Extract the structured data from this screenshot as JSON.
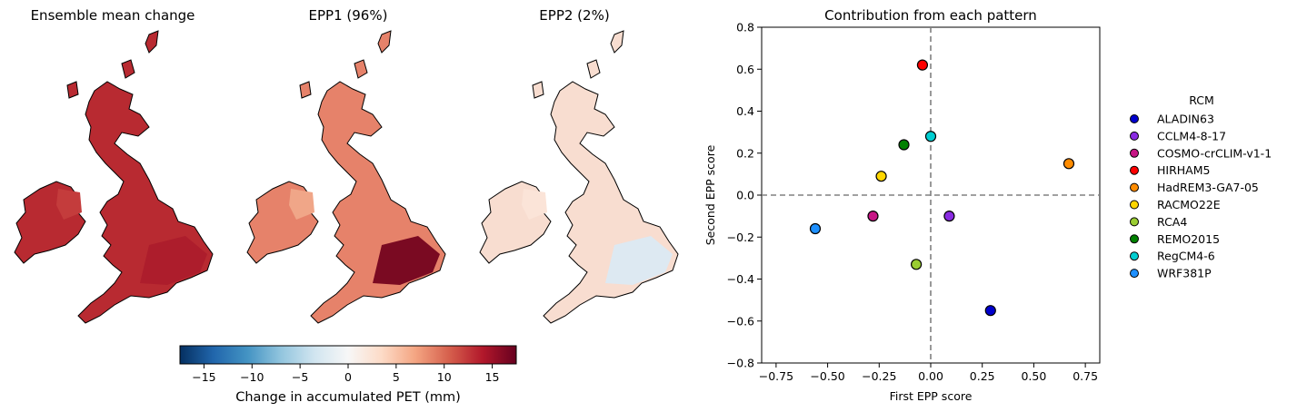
{
  "maps": [
    {
      "title": "Ensemble mean change",
      "fill": "#b82a31",
      "se_fill": "#ad1d2c",
      "ni_fill": "#c43c3c",
      "field": "mean"
    },
    {
      "title": "EPP1 (96%)",
      "fill": "#e6826a",
      "se_fill": "#7a0a22",
      "ni_fill": "#f0a688",
      "field": "epp1"
    },
    {
      "title": "EPP2 (2%)",
      "fill": "#f8ddd0",
      "se_fill": "#dde9f2",
      "ni_fill": "#fbe4d8",
      "field": "epp2"
    }
  ],
  "colorbar": {
    "label": "Change in accumulated PET (mm)",
    "min": -17.5,
    "max": 17.5,
    "ticks": [
      -15,
      -10,
      -5,
      0,
      5,
      10,
      15
    ],
    "tick_labels": [
      "−15",
      "−10",
      "−5",
      "0",
      "5",
      "10",
      "15"
    ],
    "colors": [
      "#053061",
      "#2166ac",
      "#4393c3",
      "#92c5de",
      "#d1e5f0",
      "#f7f7f7",
      "#fddbc7",
      "#f4a582",
      "#d6604d",
      "#b2182b",
      "#67001f"
    ]
  },
  "chart_data": {
    "type": "scatter",
    "title": "Contribution from each pattern",
    "xlabel": "First EPP score",
    "ylabel": "Second EPP score",
    "xlim": [
      -0.82,
      0.82
    ],
    "ylim": [
      -0.8,
      0.8
    ],
    "xticks": [
      -0.75,
      -0.5,
      -0.25,
      0.0,
      0.25,
      0.5,
      0.75
    ],
    "xtick_labels": [
      "−0.75",
      "−0.50",
      "−0.25",
      "0.00",
      "0.25",
      "0.50",
      "0.75"
    ],
    "yticks": [
      -0.8,
      -0.6,
      -0.4,
      -0.2,
      0.0,
      0.2,
      0.4,
      0.6,
      0.8
    ],
    "ytick_labels": [
      "−0.8",
      "−0.6",
      "−0.4",
      "−0.2",
      "0.0",
      "0.2",
      "0.4",
      "0.6",
      "0.8"
    ],
    "reference_lines": {
      "x": 0,
      "y": 0,
      "style": "dashed",
      "color": "#808080"
    },
    "grid": false,
    "legend_title": "RCM",
    "legend_placement": "outside right",
    "points": [
      {
        "name": "ALADIN63",
        "x": 0.29,
        "y": -0.55,
        "color": "#0000cd"
      },
      {
        "name": "CCLM4-8-17",
        "x": 0.09,
        "y": -0.1,
        "color": "#8a2be2"
      },
      {
        "name": "COSMO-crCLIM-v1-1",
        "x": -0.28,
        "y": -0.1,
        "color": "#c71585"
      },
      {
        "name": "HIRHAM5",
        "x": -0.04,
        "y": 0.62,
        "color": "#ff0000"
      },
      {
        "name": "HadREM3-GA7-05",
        "x": 0.67,
        "y": 0.15,
        "color": "#ff8c00"
      },
      {
        "name": "RACMO22E",
        "x": -0.24,
        "y": 0.09,
        "color": "#ffd700"
      },
      {
        "name": "RCA4",
        "x": -0.07,
        "y": -0.33,
        "color": "#9acd32"
      },
      {
        "name": "REMO2015",
        "x": -0.13,
        "y": 0.24,
        "color": "#008000"
      },
      {
        "name": "RegCM4-6",
        "x": 0.0,
        "y": 0.28,
        "color": "#00ced1"
      },
      {
        "name": "WRF381P",
        "x": -0.56,
        "y": -0.16,
        "color": "#1e90ff"
      }
    ]
  }
}
